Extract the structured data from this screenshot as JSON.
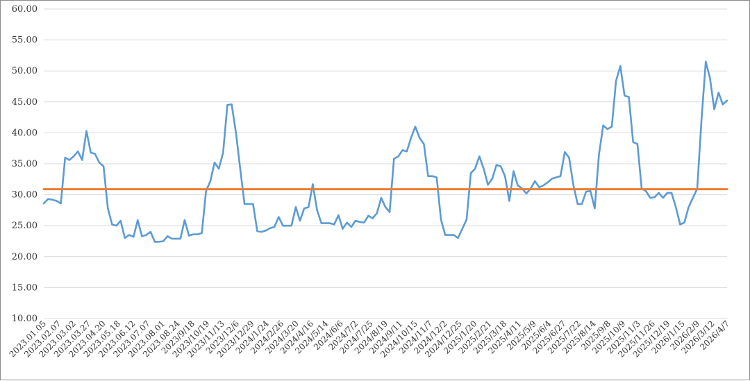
{
  "chart_data": {
    "type": "line",
    "title": "",
    "xlabel": "",
    "ylabel": "",
    "ylim": [
      10,
      60
    ],
    "y_ticks": [
      "10.00",
      "15.00",
      "20.00",
      "25.00",
      "30.00",
      "35.00",
      "40.00",
      "45.00",
      "50.00",
      "55.00",
      "60.00"
    ],
    "grid": "horizontal",
    "legend": "none",
    "x_tick_labels": [
      "2023.01.05",
      "2023.02.07",
      "2023.03.02",
      "2023.03.27",
      "2023.04.20",
      "2023.05.18",
      "2023.06.12",
      "2023.07.07",
      "2023.08.01",
      "2023.08.24",
      "2023/9/18",
      "2023/10/19",
      "2023/11/13",
      "2023/12/6",
      "2023/12/29",
      "2024/1/24",
      "2024/2/26",
      "2024/3/20",
      "2024/4/16",
      "2024/5/14",
      "2024/6/6",
      "2024/7/2",
      "2024/7/25",
      "2024/8/19",
      "2024/9/11",
      "2024/10/15",
      "2024/11/7",
      "2024/12/2",
      "2024/12/25",
      "2025/1/20",
      "2025/2/21",
      "2025/3/18",
      "2025/4/11",
      "2025/5/9",
      "2025/6/4",
      "2025/6/27",
      "2025/7/22",
      "2025/8/14",
      "2025/9/8",
      "2025/10/9",
      "2025/11/3",
      "2025/11/26",
      "2025/12/19",
      "2026/1/15",
      "2026/2/9",
      "2026/3/12",
      "2026/4/7"
    ],
    "series": [
      {
        "color": "#5b9bd5",
        "values": [
          28.6,
          29.3,
          29.2,
          29.0,
          28.6,
          36.0,
          35.6,
          36.2,
          37.0,
          35.6,
          40.3,
          36.8,
          36.6,
          35.2,
          34.6,
          27.8,
          25.2,
          25.0,
          25.8,
          23.0,
          23.5,
          23.2,
          25.9,
          23.3,
          23.5,
          24.0,
          22.4,
          22.4,
          22.5,
          23.3,
          22.9,
          22.9,
          22.9,
          25.9,
          23.4,
          23.6,
          23.6,
          23.8,
          30.6,
          32.2,
          35.2,
          34.2,
          36.8,
          44.5,
          44.6,
          40.0,
          34.2,
          28.5,
          28.5,
          28.5,
          24.1,
          24.0,
          24.2,
          24.6,
          24.8,
          26.4,
          25.0,
          25.0,
          25.0,
          28.0,
          25.8,
          27.8,
          28.0,
          31.7,
          27.5,
          25.4,
          25.4,
          25.4,
          25.2,
          26.7,
          24.5,
          25.5,
          24.8,
          25.8,
          25.6,
          25.5,
          26.6,
          26.2,
          27.0,
          29.5,
          28.0,
          27.2,
          35.8,
          36.2,
          37.2,
          37.0,
          39.2,
          41.0,
          39.2,
          38.2,
          33.0,
          33.0,
          32.8,
          26.0,
          23.5,
          23.5,
          23.5,
          23.0,
          24.5,
          26.0,
          33.5,
          34.2,
          36.2,
          34.2,
          31.6,
          32.6,
          34.8,
          34.6,
          33.0,
          29.0,
          33.8,
          31.5,
          31.0,
          30.2,
          31.0,
          32.2,
          31.2,
          31.5,
          32.0,
          32.6,
          32.8,
          33.0,
          36.9,
          36.0,
          31.6,
          28.5,
          28.5,
          30.5,
          30.6,
          27.8,
          36.5,
          41.2,
          40.6,
          41.0,
          48.4,
          50.8,
          46.0,
          45.8,
          38.5,
          38.2,
          31.0,
          30.6,
          29.5,
          29.6,
          30.3,
          29.5,
          30.3,
          30.3,
          28.0,
          25.2,
          25.5,
          28.0,
          29.5,
          31.0,
          42.0,
          51.5,
          48.8,
          43.8,
          46.5,
          44.6,
          45.2
        ]
      },
      {
        "color": "#ed7d31",
        "values": [
          30.9,
          30.9
        ]
      }
    ]
  }
}
